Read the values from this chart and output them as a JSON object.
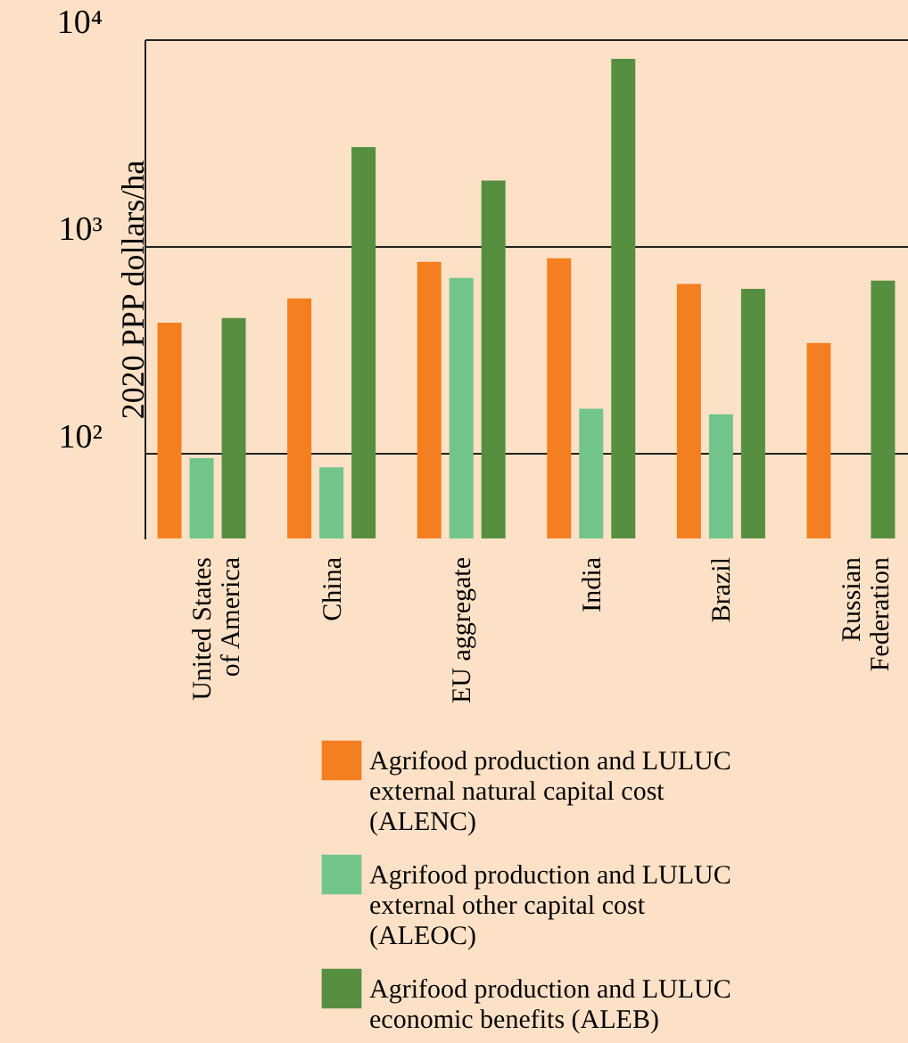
{
  "chart_data": {
    "type": "bar",
    "ylabel": "2020 PPP dollars/ha",
    "categories": [
      "United States of America",
      "China",
      "EU aggregate",
      "India",
      "Brazil",
      "Russian Federation"
    ],
    "series": [
      {
        "name": "Agrifood production and LULUC external natural capital cost (ALENC)",
        "color": "#f47f20",
        "values": [
          429,
          562,
          842,
          877,
          659,
          342
        ]
      },
      {
        "name": "Agrifood production and LULUC external other capital cost (ALEOC)",
        "color": "#71c58b",
        "values": [
          95,
          86,
          705,
          165,
          155,
          null
        ]
      },
      {
        "name": "Agrifood production and LULUC economic benefits (ALEB)",
        "color": "#578f41",
        "values": [
          452,
          3020,
          2080,
          8040,
          625,
          685
        ]
      }
    ],
    "log": true,
    "ylim": [
      39,
      10000
    ],
    "yticks": [
      {
        "value": 100,
        "label": "10²"
      },
      {
        "value": 1000,
        "label": "10³"
      },
      {
        "value": 10000,
        "label": "10⁴"
      }
    ],
    "grid": "y",
    "legend": "bottom"
  }
}
